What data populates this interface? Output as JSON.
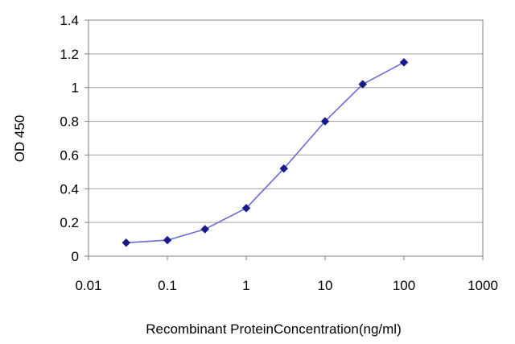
{
  "chart_data": {
    "type": "line",
    "title": "",
    "xlabel": "Recombinant ProteinConcentration(ng/ml)",
    "ylabel": "OD 450",
    "x_scale": "log",
    "xlim": [
      0.01,
      1000
    ],
    "ylim": [
      0,
      1.4
    ],
    "x_ticks": [
      0.01,
      0.1,
      1,
      10,
      100,
      1000
    ],
    "x_tick_labels": [
      "0.01",
      "0.1",
      "1",
      "10",
      "100",
      "1000"
    ],
    "y_ticks": [
      0,
      0.2,
      0.4,
      0.6,
      0.8,
      1,
      1.2,
      1.4
    ],
    "y_tick_labels": [
      "0",
      "0.2",
      "0.4",
      "0.6",
      "0.8",
      "1",
      "1.2",
      "1.4"
    ],
    "grid": "horizontal",
    "legend": "none",
    "series": [
      {
        "x": [
          0.03,
          0.1,
          0.3,
          1,
          3,
          10,
          30,
          100
        ],
        "y": [
          0.08,
          0.095,
          0.16,
          0.285,
          0.52,
          0.8,
          1.02,
          1.15
        ]
      }
    ],
    "colors": {
      "line": "#6b6bd6",
      "marker": "#1a1a8c",
      "grid": "#a0a0a0",
      "axis": "#7f7f7f"
    }
  }
}
